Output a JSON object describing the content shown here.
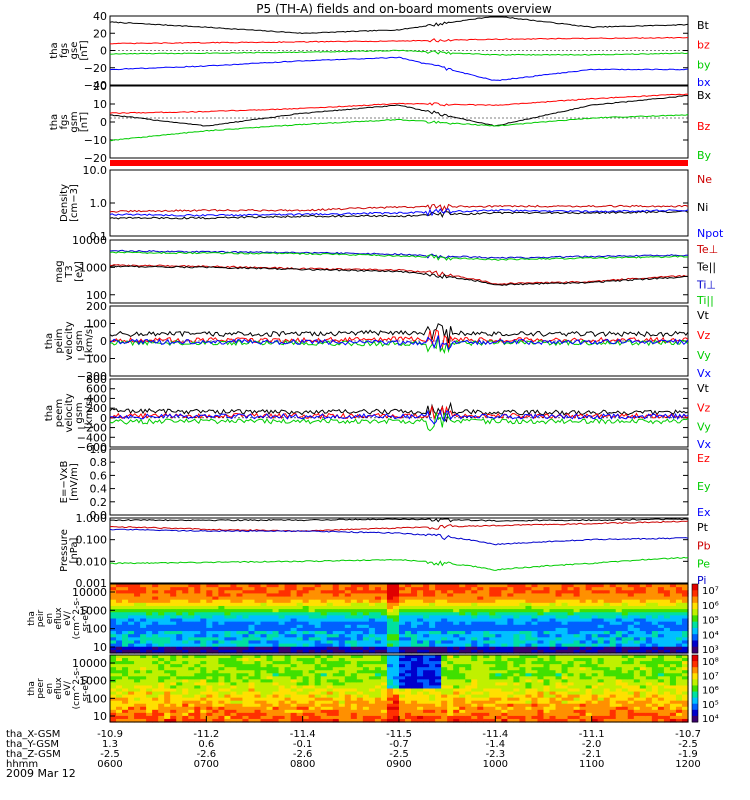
{
  "title": "P5 (TH-A) fields and on-board moments overview",
  "date_label": "2009 Mar 12",
  "chart_data": {
    "type": "line",
    "time_ticks": [
      "0600",
      "0700",
      "0800",
      "0900",
      "1000",
      "1100",
      "1200"
    ],
    "ephemeris": [
      {
        "name": "tha_X-GSM",
        "values": [
          "-10.9",
          "-11.2",
          "-11.4",
          "-11.5",
          "-11.4",
          "-11.1",
          "-10.7"
        ]
      },
      {
        "name": "tha_Y-GSM",
        "values": [
          "1.3",
          "0.6",
          "-0.1",
          "-0.7",
          "-1.4",
          "-2.0",
          "-2.5"
        ]
      },
      {
        "name": "tha_Z-GSM",
        "values": [
          "-2.5",
          "-2.6",
          "-2.6",
          "-2.5",
          "-2.3",
          "-2.1",
          "-1.9"
        ]
      },
      {
        "name": "hhmm",
        "values": []
      }
    ],
    "panels": [
      {
        "id": "fgs-gse",
        "ylabel": [
          "tha",
          "fgs",
          "gse",
          "[nT]"
        ],
        "ticks": [
          "40",
          "20",
          "0",
          "−20",
          "−40"
        ],
        "ylim": [
          -40,
          40
        ],
        "grid_zero": true,
        "series": [
          {
            "name": "Bt",
            "color": "#000000",
            "values": [
              33,
              27,
              20,
              24,
              40,
              27,
              30
            ]
          },
          {
            "name": "bz",
            "color": "#ff0000",
            "values": [
              8,
              9,
              10,
              11,
              13,
              14,
              15
            ]
          },
          {
            "name": "by",
            "color": "#00cc00",
            "values": [
              -4,
              -3,
              -2,
              0,
              -5,
              -5,
              -3
            ]
          },
          {
            "name": "bx",
            "color": "#0000ff",
            "values": [
              -22,
              -18,
              -12,
              -8,
              -35,
              -22,
              -22
            ]
          }
        ]
      },
      {
        "id": "fgs-gsm",
        "ylabel": [
          "tha",
          "fgs",
          "gsm",
          "[nT]"
        ],
        "ticks": [
          "20",
          "10",
          "0",
          "−10",
          "−20"
        ],
        "ylim": [
          -25,
          20
        ],
        "grid_zero": true,
        "series": [
          {
            "name": "Bx",
            "color": "#000000",
            "values": [
              2,
              -5,
              3,
              8,
              -5,
              8,
              14
            ]
          },
          {
            "name": "Bz",
            "color": "#ff0000",
            "values": [
              3,
              4,
              6,
              9,
              8,
              12,
              15
            ]
          },
          {
            "name": "By",
            "color": "#00cc00",
            "values": [
              -14,
              -8,
              -4,
              -1,
              -5,
              0,
              2
            ]
          }
        ]
      },
      {
        "id": "density",
        "ylabel": [
          "Density",
          "[cm−3]"
        ],
        "ticks": [
          "10.0",
          "1.0",
          "0.1"
        ],
        "ylim": [
          0.1,
          10
        ],
        "log": true,
        "series": [
          {
            "name": "Ne",
            "color": "#cc0000",
            "values": [
              0.55,
              0.6,
              0.6,
              0.75,
              0.8,
              0.8,
              0.8
            ]
          },
          {
            "name": "Ni",
            "color": "#000000",
            "values": [
              0.35,
              0.35,
              0.4,
              0.4,
              0.5,
              0.5,
              0.55
            ]
          },
          {
            "name": "Npot",
            "color": "#0000ff",
            "values": [
              0.45,
              0.42,
              0.45,
              0.5,
              0.6,
              0.55,
              0.6
            ]
          }
        ]
      },
      {
        "id": "temperature",
        "ylabel": [
          "mag",
          "T3",
          "[eV]"
        ],
        "ticks": [
          "10000",
          "1000",
          "100"
        ],
        "ylim": [
          50,
          10000
        ],
        "log": true,
        "series": [
          {
            "name": "Te⊥",
            "color": "#cc0000",
            "values": [
              1200,
              1100,
              900,
              800,
              250,
              300,
              500
            ]
          },
          {
            "name": "Te||",
            "color": "#000000",
            "values": [
              1100,
              1000,
              850,
              700,
              230,
              280,
              450
            ]
          },
          {
            "name": "Ti⊥",
            "color": "#0000cc",
            "values": [
              4000,
              3700,
              3500,
              3000,
              2200,
              2500,
              2800
            ]
          },
          {
            "name": "Ti||",
            "color": "#00cc00",
            "values": [
              3500,
              3300,
              3200,
              2600,
              1900,
              2200,
              2500
            ]
          }
        ]
      },
      {
        "id": "peim-velocity",
        "ylabel": [
          "tha",
          "peim",
          "velocity",
          "gsm",
          "[km/s]"
        ],
        "ticks": [
          "200",
          "100",
          "0",
          "−100",
          "−200"
        ],
        "ylim": [
          -200,
          200
        ],
        "grid_zero": true,
        "series": [
          {
            "name": "Vt",
            "color": "#000000",
            "values": [
              40,
              40,
              40,
              50,
              40,
              40,
              40
            ]
          },
          {
            "name": "Vz",
            "color": "#ff0000",
            "values": [
              5,
              5,
              5,
              10,
              5,
              5,
              5
            ]
          },
          {
            "name": "Vy",
            "color": "#00cc00",
            "values": [
              -10,
              -10,
              -10,
              -15,
              -10,
              -10,
              -10
            ]
          },
          {
            "name": "Vx",
            "color": "#0000ff",
            "values": [
              -5,
              -5,
              -5,
              -10,
              -5,
              -5,
              -5
            ]
          }
        ]
      },
      {
        "id": "peem-velocity",
        "ylabel": [
          "tha",
          "peem",
          "velocity",
          "gsm",
          "[km/s]"
        ],
        "ticks": [
          "800",
          "600",
          "400",
          "200",
          "0",
          "−200",
          "−400",
          "−600"
        ],
        "ylim": [
          -600,
          800
        ],
        "grid_zero": true,
        "series": [
          {
            "name": "Vt",
            "color": "#000000",
            "values": [
              150,
              130,
              120,
              130,
              110,
              110,
              110
            ]
          },
          {
            "name": "Vz",
            "color": "#ff0000",
            "values": [
              40,
              40,
              40,
              40,
              40,
              40,
              40
            ]
          },
          {
            "name": "Vy",
            "color": "#00cc00",
            "values": [
              -80,
              -70,
              -70,
              -70,
              -70,
              -70,
              -70
            ]
          },
          {
            "name": "Vx",
            "color": "#0000ff",
            "values": [
              30,
              30,
              30,
              30,
              30,
              30,
              30
            ]
          }
        ]
      },
      {
        "id": "e-field",
        "ylabel": [
          "E=−VxB",
          "[mV/m]"
        ],
        "ticks": [
          "1.0",
          "0.8",
          "0.6",
          "0.4",
          "0.2",
          "0.0"
        ],
        "ylim": [
          0,
          1
        ],
        "series": [
          {
            "name": "Ez",
            "color": "#ff0000",
            "values": []
          },
          {
            "name": "Ey",
            "color": "#00cc00",
            "values": []
          },
          {
            "name": "Ex",
            "color": "#0000ff",
            "values": []
          }
        ]
      },
      {
        "id": "pressure",
        "ylabel": [
          "Pressure",
          "[nPa]"
        ],
        "ticks": [
          "1.000",
          "0.100",
          "0.010",
          "0.001"
        ],
        "ylim": [
          0.001,
          1
        ],
        "log": true,
        "series": [
          {
            "name": "Pt",
            "color": "#000000",
            "values": [
              0.8,
              0.8,
              0.8,
              0.9,
              0.75,
              0.8,
              0.9
            ]
          },
          {
            "name": "Pb",
            "color": "#cc0000",
            "values": [
              0.4,
              0.3,
              0.25,
              0.35,
              0.45,
              0.55,
              0.7
            ]
          },
          {
            "name": "Pe",
            "color": "#00cc00",
            "values": [
              0.008,
              0.009,
              0.01,
              0.012,
              0.004,
              0.008,
              0.015
            ]
          },
          {
            "name": "Pi",
            "color": "#0000cc",
            "values": [
              0.3,
              0.25,
              0.25,
              0.2,
              0.06,
              0.1,
              0.12
            ]
          }
        ]
      }
    ],
    "spectrograms": [
      {
        "id": "peir-en-eflux",
        "ylabel": [
          "tha",
          "peir",
          "en",
          "eflux",
          "eV/",
          "(cm^2-s-",
          "sr-eV)"
        ],
        "ticks": [
          "10000",
          "1000",
          "100",
          "10"
        ],
        "colorbar_ticks": [
          "10⁷",
          "10⁶",
          "10⁵",
          "10⁴",
          "10³"
        ]
      },
      {
        "id": "peer-en-eflux",
        "ylabel": [
          "tha",
          "peer",
          "en",
          "eflux",
          "eV/",
          "(cm^2-s-",
          "sr-eV)"
        ],
        "ticks": [
          "10000",
          "1000",
          "100",
          "10"
        ],
        "colorbar_ticks": [
          "10⁸",
          "10⁷",
          "10⁶",
          "10⁵",
          "10⁴"
        ]
      }
    ]
  }
}
